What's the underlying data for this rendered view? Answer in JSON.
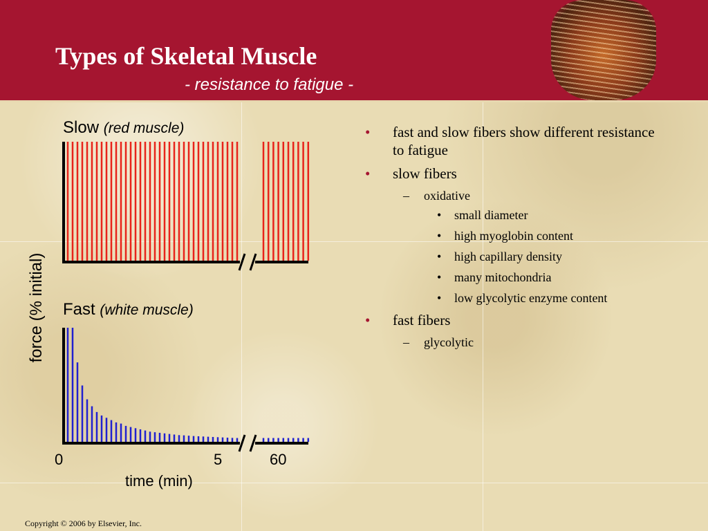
{
  "slide": {
    "title": "Types of Skeletal Muscle",
    "subtitle": "- resistance to fatigue -",
    "footer": "Copyright © 2006 by Elsevier, Inc."
  },
  "colors": {
    "header": "#a51530",
    "slow_series": "#e8231a",
    "fast_series": "#2020d0",
    "bullet_marker": "#a51530"
  },
  "figure": {
    "slow_label": "Slow",
    "slow_label_italic": "(red muscle)",
    "fast_label": "Fast",
    "fast_label_italic": "(white muscle)",
    "ylabel": "force (% initial)",
    "xlabel": "time (min)",
    "ticks": {
      "t0": "0",
      "t5": "5",
      "t60": "60"
    }
  },
  "chart_data": [
    {
      "type": "bar",
      "panel": "slow",
      "axis_break": true,
      "pre_break_values": [
        100,
        100,
        100,
        100,
        100,
        100,
        100,
        100,
        100,
        100,
        100,
        100,
        100,
        100,
        100,
        100,
        100,
        100,
        100,
        100,
        100,
        100,
        100,
        100,
        100,
        100,
        100,
        100,
        100,
        100,
        100,
        100,
        100,
        100,
        100,
        100
      ],
      "post_break_values": [
        100,
        100,
        100,
        100,
        100,
        100,
        100,
        100,
        100,
        100
      ],
      "ylim": [
        0,
        100
      ]
    },
    {
      "type": "bar",
      "panel": "fast",
      "axis_break": true,
      "pre_break_values": [
        100,
        100,
        70,
        50,
        38,
        32,
        27,
        24,
        22,
        20,
        18,
        17,
        15,
        14,
        13,
        12,
        11,
        10,
        9.5,
        9,
        8.5,
        8,
        7.5,
        7,
        6.8,
        6.5,
        6.2,
        6,
        5.8,
        5.6,
        5.4,
        5.2,
        5,
        4.8,
        4.6,
        4.5
      ],
      "post_break_values": [
        4.5,
        4.5,
        4.5,
        4.5,
        4.5,
        4.5,
        4.5,
        4.5,
        4.5,
        4.5
      ],
      "ylim": [
        0,
        100
      ]
    }
  ],
  "bullets": {
    "b1": {
      "marker": "•",
      "text": "fast and slow fibers show different resistance to fatigue"
    },
    "b2": {
      "marker": "•",
      "text": "slow fibers"
    },
    "b2_1": {
      "marker": "–",
      "text": "oxidative"
    },
    "b2_1_1": {
      "marker": "•",
      "text": "small diameter"
    },
    "b2_1_2": {
      "marker": "•",
      "text": "high myoglobin content"
    },
    "b2_1_3": {
      "marker": "•",
      "text": "high capillary density"
    },
    "b2_1_4": {
      "marker": "•",
      "text": "many mitochondria"
    },
    "b2_1_5": {
      "marker": "•",
      "text": "low glycolytic enzyme content"
    },
    "b3": {
      "marker": "•",
      "text": "fast fibers"
    },
    "b3_1": {
      "marker": "–",
      "text": "glycolytic"
    }
  }
}
